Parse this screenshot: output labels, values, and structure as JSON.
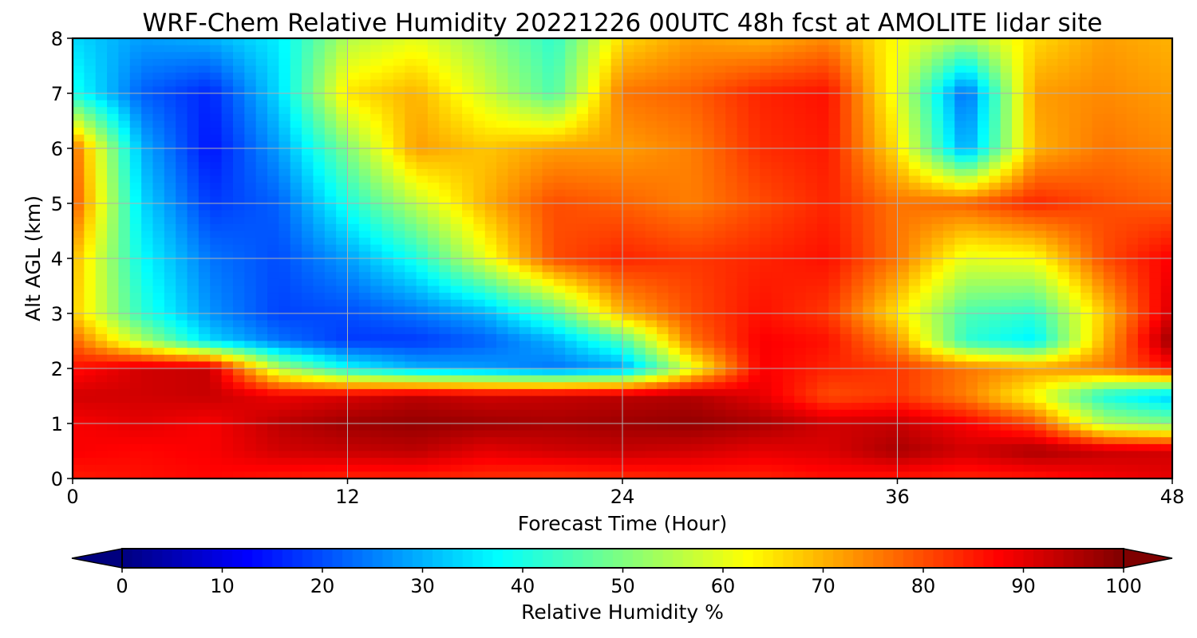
{
  "chart_data": {
    "type": "heatmap",
    "title": "WRF-Chem Relative Humidity 20221226 00UTC 48h fcst at AMOLITE lidar site",
    "xlabel": "Forecast Time (Hour)",
    "ylabel": "Alt AGL (km)",
    "xlim": [
      0,
      48
    ],
    "ylim": [
      0,
      8
    ],
    "xticks": [
      0,
      12,
      24,
      36,
      48
    ],
    "yticks": [
      0,
      1,
      2,
      3,
      4,
      5,
      6,
      7,
      8
    ],
    "grid": true,
    "colorbar": {
      "label": "Relative Humidity %",
      "vmin": 0,
      "vmax": 100,
      "ticks": [
        0,
        10,
        20,
        30,
        40,
        50,
        60,
        70,
        80,
        90,
        100
      ],
      "colormap": "jet",
      "extend": "both",
      "colors": [
        "#00007f",
        "#0000ff",
        "#007fff",
        "#00ffff",
        "#7fff7f",
        "#ffff00",
        "#ff7f00",
        "#ff0000",
        "#7f0000"
      ]
    },
    "grid_x": [
      0,
      3,
      6,
      9,
      12,
      15,
      18,
      21,
      24,
      27,
      30,
      33,
      36,
      39,
      42,
      45,
      48
    ],
    "grid_y": [
      0,
      0.5,
      1,
      1.5,
      2,
      2.5,
      3,
      4,
      5,
      6,
      7,
      8
    ],
    "z": [
      [
        85,
        86,
        87,
        85,
        84,
        84,
        83,
        82,
        83,
        84,
        84,
        86,
        85,
        84,
        85,
        88,
        90
      ],
      [
        88,
        87,
        88,
        92,
        93,
        94,
        90,
        92,
        93,
        92,
        90,
        91,
        96,
        92,
        96,
        93,
        92
      ],
      [
        88,
        90,
        88,
        94,
        97,
        98,
        97,
        96,
        97,
        98,
        96,
        92,
        93,
        88,
        80,
        55,
        50
      ],
      [
        92,
        92,
        93,
        89,
        91,
        94,
        92,
        93,
        94,
        95,
        90,
        80,
        82,
        75,
        62,
        40,
        32
      ],
      [
        86,
        92,
        93,
        55,
        38,
        30,
        28,
        24,
        28,
        60,
        88,
        84,
        82,
        76,
        72,
        76,
        86
      ],
      [
        78,
        55,
        34,
        24,
        18,
        18,
        22,
        30,
        45,
        76,
        88,
        86,
        73,
        42,
        36,
        70,
        98
      ],
      [
        68,
        42,
        27,
        19,
        20,
        24,
        30,
        45,
        70,
        80,
        86,
        82,
        65,
        45,
        42,
        68,
        92
      ],
      [
        70,
        38,
        24,
        20,
        28,
        40,
        60,
        80,
        84,
        82,
        84,
        86,
        76,
        60,
        62,
        80,
        88
      ],
      [
        80,
        34,
        18,
        22,
        40,
        56,
        70,
        80,
        78,
        75,
        80,
        84,
        76,
        78,
        84,
        80,
        78
      ],
      [
        78,
        30,
        14,
        28,
        50,
        72,
        68,
        72,
        72,
        75,
        83,
        85,
        65,
        28,
        70,
        76,
        74
      ],
      [
        40,
        22,
        16,
        34,
        65,
        70,
        58,
        45,
        76,
        78,
        84,
        86,
        60,
        22,
        72,
        74,
        72
      ],
      [
        34,
        28,
        30,
        36,
        55,
        60,
        52,
        42,
        66,
        72,
        70,
        74,
        62,
        54,
        66,
        72,
        70
      ]
    ]
  }
}
